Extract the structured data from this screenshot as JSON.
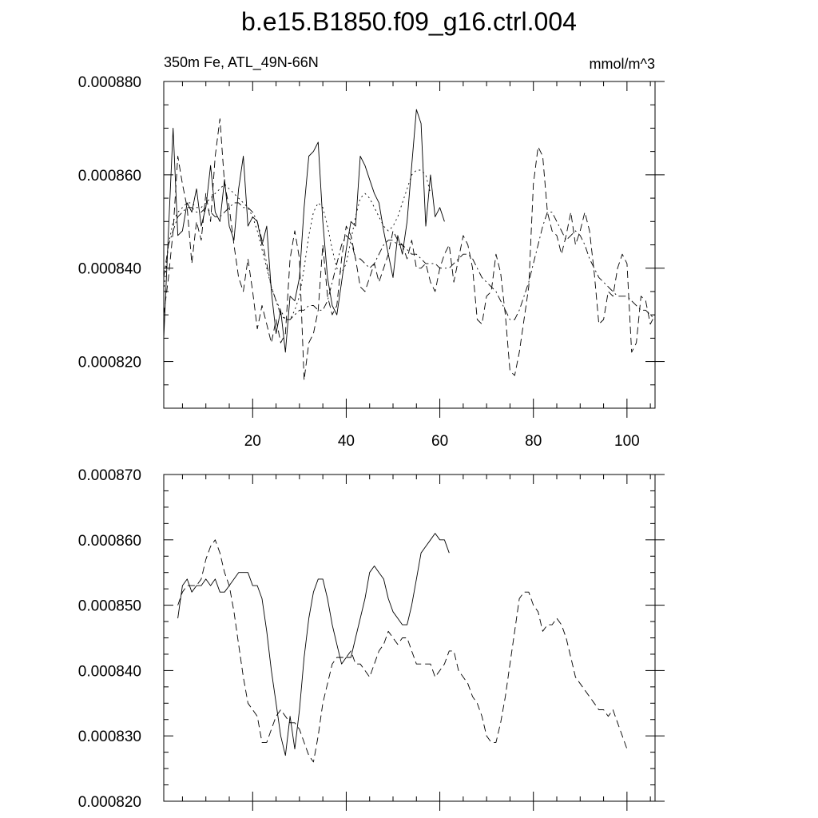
{
  "title": "b.e15.B1850.f09_g16.ctrl.004",
  "chart_data": [
    {
      "type": "line",
      "left_label": "350m Fe, ATL_49N-66N",
      "right_label": "mmol/m^3",
      "xlim": [
        1,
        106
      ],
      "ylim": [
        0.00081,
        0.00088
      ],
      "x_ticks": [
        20,
        40,
        60,
        80,
        100
      ],
      "x_tick_labels": [
        "20",
        "40",
        "60",
        "80",
        "100"
      ],
      "y_ticks": [
        0.00082,
        0.00084,
        0.00086,
        0.00088
      ],
      "y_tick_labels": [
        "0.000820",
        "0.000840",
        "0.000860",
        "0.000880"
      ],
      "grid": false,
      "series": [
        {
          "style": "solid",
          "x_start": 1,
          "values": [
            0.000825,
            0.000848,
            0.00087,
            0.000847,
            0.000848,
            0.000854,
            0.000852,
            0.000857,
            0.000849,
            0.000853,
            0.000862,
            0.000852,
            0.00085,
            0.000859,
            0.000849,
            0.000846,
            0.000857,
            0.000864,
            0.000849,
            0.000851,
            0.00085,
            0.000845,
            0.000849,
            0.000835,
            0.000826,
            0.000831,
            0.000822,
            0.000834,
            0.000833,
            0.000838,
            0.000853,
            0.000864,
            0.000865,
            0.000867,
            0.00085,
            0.000838,
            0.000832,
            0.00083,
            0.000837,
            0.000844,
            0.00085,
            0.000849,
            0.000864,
            0.000862,
            0.000859,
            0.000856,
            0.000854,
            0.000848,
            0.000843,
            0.000838,
            0.000847,
            0.000843,
            0.00085,
            0.000862,
            0.000874,
            0.000871,
            0.000849,
            0.00086,
            0.000851,
            0.000853,
            0.00085
          ]
        },
        {
          "style": "dashed",
          "x_start": 1,
          "values": [
            0.00083,
            0.000838,
            0.000848,
            0.000864,
            0.000858,
            0.000853,
            0.000841,
            0.00085,
            0.000846,
            0.000856,
            0.00085,
            0.000864,
            0.000872,
            0.000858,
            0.000853,
            0.000845,
            0.000838,
            0.000835,
            0.000842,
            0.000835,
            0.000827,
            0.000832,
            0.000828,
            0.000824,
            0.000829,
            0.000824,
            0.000826,
            0.000842,
            0.000848,
            0.000842,
            0.000816,
            0.000824,
            0.000826,
            0.000831,
            0.000845,
            0.000834,
            0.00083,
            0.000832,
            0.000842,
            0.000849,
            0.000847,
            0.000842,
            0.000836,
            0.000835,
            0.000838,
            0.000841,
            0.000837,
            0.00084,
            0.000843,
            0.000848,
            0.000846,
            0.000845,
            0.000842,
            0.000846,
            0.00084,
            0.00084,
            0.000841,
            0.000837,
            0.000835,
            0.00084,
            0.000843,
            0.000845,
            0.000837,
            0.000842,
            0.000847,
            0.000845,
            0.00084,
            0.000829,
            0.000828,
            0.000834,
            0.000835,
            0.000843,
            0.000839,
            0.00083,
            0.000818,
            0.000817,
            0.000822,
            0.000829,
            0.000836,
            0.000858,
            0.000866,
            0.000864,
            0.000852,
            0.000848,
            0.000847,
            0.000843,
            0.000847,
            0.000852,
            0.000845,
            0.000848,
            0.000852,
            0.000848,
            0.000839,
            0.000828,
            0.000829,
            0.000835,
            0.000834,
            0.00084,
            0.000843,
            0.000841,
            0.000822,
            0.000824,
            0.000834,
            0.000833,
            0.000828,
            0.00083
          ]
        },
        {
          "style": "dotted",
          "x_start": 1,
          "values": [
            0.000835,
            0.000845,
            0.00085,
            0.000852,
            0.000853,
            0.000854,
            0.000854,
            0.000853,
            0.000853,
            0.000854,
            0.000855,
            0.000856,
            0.000857,
            0.000858,
            0.000857,
            0.000856,
            0.000855,
            0.000854,
            0.000853,
            0.000851,
            0.000848,
            0.000844,
            0.00084,
            0.000836,
            0.000833,
            0.000831,
            0.000829,
            0.000829,
            0.000831,
            0.000834,
            0.00084,
            0.000847,
            0.000852,
            0.000854,
            0.000853,
            0.000849,
            0.000844,
            0.00084,
            0.000839,
            0.000841,
            0.000846,
            0.000851,
            0.000855,
            0.000856,
            0.000855,
            0.000853,
            0.000851,
            0.000849,
            0.000848,
            0.000849,
            0.000851,
            0.000854,
            0.000857,
            0.00086,
            0.000861,
            0.000861,
            0.00086,
            0.000856
          ]
        },
        {
          "style": "dashdot",
          "x_start": 1,
          "values": [
            0.000838,
            0.000845,
            0.000848,
            0.000851,
            0.000852,
            0.000853,
            0.000853,
            0.000852,
            0.000852,
            0.000853,
            0.000852,
            0.000851,
            0.000851,
            0.000852,
            0.000853,
            0.000854,
            0.000854,
            0.000853,
            0.000853,
            0.000852,
            0.00085,
            0.000846,
            0.000841,
            0.000836,
            0.000833,
            0.00083,
            0.000829,
            0.000829,
            0.00083,
            0.000831,
            0.000831,
            0.000832,
            0.000832,
            0.000831,
            0.000831,
            0.000833,
            0.000837,
            0.000841,
            0.000845,
            0.000847,
            0.000846,
            0.000842,
            0.000842,
            0.000841,
            0.00084,
            0.000841,
            0.000843,
            0.000845,
            0.000846,
            0.000846,
            0.000845,
            0.000845,
            0.000844,
            0.000843,
            0.000843,
            0.000842,
            0.000841,
            0.000841,
            0.000841,
            0.00084,
            0.00084,
            0.00084,
            0.000841,
            0.000842,
            0.000843,
            0.000843,
            0.000842,
            0.00084,
            0.000838,
            0.000837,
            0.000836,
            0.000835,
            0.000833,
            0.000831,
            0.000829,
            0.000829,
            0.000831,
            0.000834,
            0.000837,
            0.000841,
            0.000845,
            0.000849,
            0.000852,
            0.000852,
            0.00085,
            0.000848,
            0.000846,
            0.000847,
            0.000848,
            0.000847,
            0.000845,
            0.000842,
            0.00084,
            0.000838,
            0.000837,
            0.000836,
            0.000835,
            0.000834,
            0.000834,
            0.000834,
            0.000833,
            0.000832,
            0.000831,
            0.000831,
            0.00083,
            0.000829
          ]
        }
      ]
    },
    {
      "type": "line",
      "xlim": [
        1,
        106
      ],
      "ylim": [
        0.00082,
        0.00087
      ],
      "x_ticks": [
        20,
        40,
        60,
        80,
        100
      ],
      "y_ticks": [
        0.00082,
        0.00083,
        0.00084,
        0.00085,
        0.00086,
        0.00087
      ],
      "y_tick_labels": [
        "0.000820",
        "0.000830",
        "0.000840",
        "0.000850",
        "0.000860",
        "0.000870"
      ],
      "grid": false,
      "series": [
        {
          "style": "solid",
          "x_start": 4,
          "values": [
            0.000848,
            0.000853,
            0.000854,
            0.000852,
            0.000853,
            0.000853,
            0.000854,
            0.000853,
            0.000854,
            0.000852,
            0.000852,
            0.000853,
            0.000854,
            0.000855,
            0.000855,
            0.000855,
            0.000853,
            0.000853,
            0.000851,
            0.000846,
            0.00084,
            0.000835,
            0.00083,
            0.000827,
            0.000833,
            0.000828,
            0.000834,
            0.000842,
            0.000848,
            0.000852,
            0.000854,
            0.000854,
            0.000851,
            0.000847,
            0.000844,
            0.000841,
            0.000842,
            0.000842,
            0.000845,
            0.000848,
            0.000851,
            0.000855,
            0.000856,
            0.000855,
            0.000854,
            0.000851,
            0.000849,
            0.000848,
            0.000847,
            0.000847,
            0.00085,
            0.000854,
            0.000858,
            0.000859,
            0.00086,
            0.000861,
            0.00086,
            0.00086,
            0.000858
          ]
        },
        {
          "style": "dashed",
          "x_start": 4,
          "values": [
            0.00085,
            0.000852,
            0.000853,
            0.000853,
            0.000853,
            0.000854,
            0.000857,
            0.000859,
            0.00086,
            0.000858,
            0.000855,
            0.000853,
            0.000849,
            0.000844,
            0.000839,
            0.000835,
            0.000834,
            0.000833,
            0.000829,
            0.000829,
            0.000831,
            0.000833,
            0.000834,
            0.000833,
            0.000832,
            0.000832,
            0.000831,
            0.000829,
            0.000827,
            0.000826,
            0.00083,
            0.000835,
            0.000838,
            0.000841,
            0.000842,
            0.000842,
            0.000842,
            0.000843,
            0.000841,
            0.000841,
            0.00084,
            0.000839,
            0.000841,
            0.000843,
            0.000844,
            0.000846,
            0.000845,
            0.000844,
            0.000845,
            0.000845,
            0.000843,
            0.000841,
            0.000841,
            0.000841,
            0.000841,
            0.000839,
            0.00084,
            0.000841,
            0.000843,
            0.000843,
            0.00084,
            0.000839,
            0.000838,
            0.000836,
            0.000835,
            0.000833,
            0.00083,
            0.000829,
            0.000829,
            0.000832,
            0.000836,
            0.000841,
            0.000846,
            0.000851,
            0.000852,
            0.000852,
            0.00085,
            0.000849,
            0.000846,
            0.000847,
            0.000847,
            0.000848,
            0.000847,
            0.000845,
            0.000842,
            0.000839,
            0.000838,
            0.000837,
            0.000836,
            0.000835,
            0.000834,
            0.000834,
            0.000833,
            0.000834,
            0.000832,
            0.00083,
            0.000828
          ]
        }
      ]
    }
  ]
}
